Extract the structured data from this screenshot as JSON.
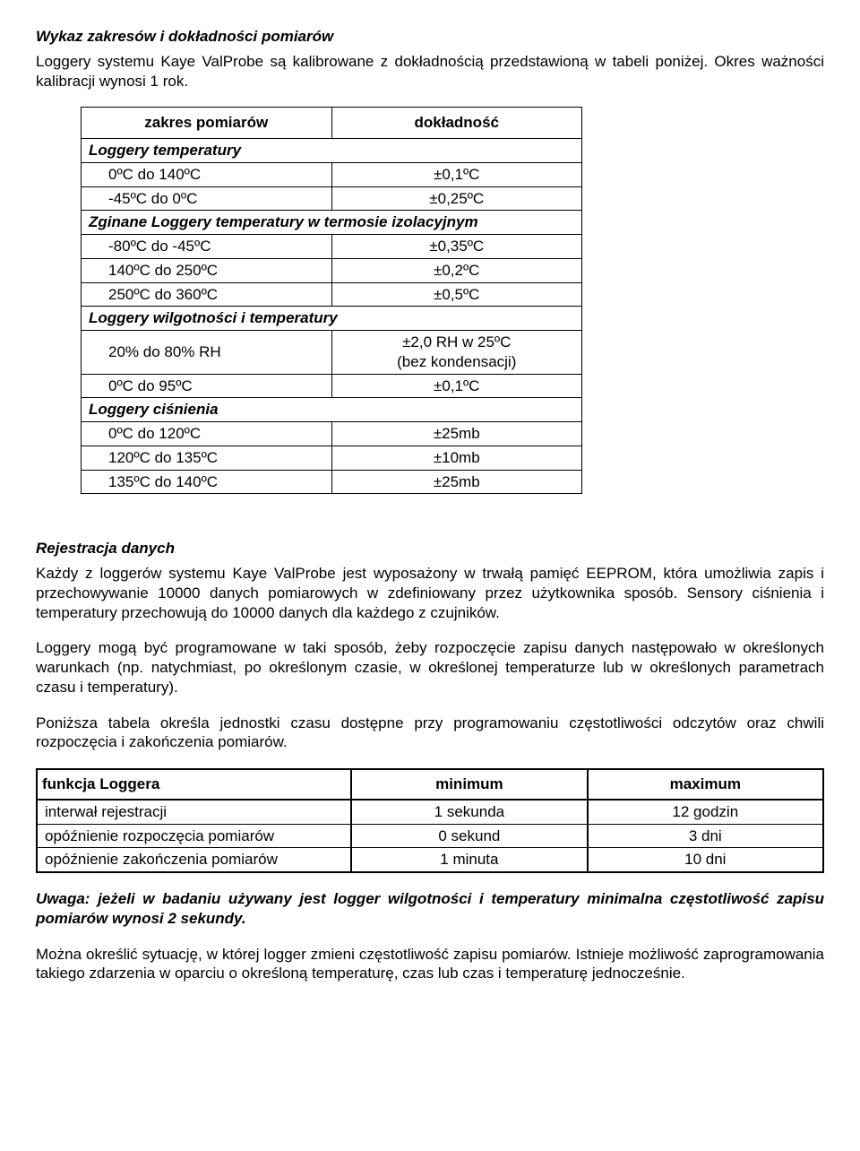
{
  "s1": {
    "title": "Wykaz zakresów i dokładności pomiarów",
    "intro": "Loggery systemu Kaye ValProbe są kalibrowane z dokładnością przedstawioną w tabeli poniżej. Okres ważności kalibracji wynosi 1 rok."
  },
  "t1": {
    "h1": "zakres pomiarów",
    "h2": "dokładność",
    "g1": "Loggery temperatury",
    "r1a": "0ºC do 140ºC",
    "r1b": "±0,1ºC",
    "r2a": "-45ºC do 0ºC",
    "r2b": "±0,25ºC",
    "g2": "Zginane Loggery temperatury w termosie izolacyjnym",
    "r3a": "-80ºC do -45ºC",
    "r3b": "±0,35ºC",
    "r4a": "140ºC do 250ºC",
    "r4b": "±0,2ºC",
    "r5a": "250ºC do 360ºC",
    "r5b": "±0,5ºC",
    "g3": "Loggery wilgotności i temperatury",
    "r6a": "20% do 80% RH",
    "r6b1": "±2,0 RH w 25ºC",
    "r6b2": "(bez kondensacji)",
    "r7a": "0ºC do 95ºC",
    "r7b": "±0,1ºC",
    "g4": "Loggery ciśnienia",
    "r8a": "0ºC do 120ºC",
    "r8b": "±25mb",
    "r9a": "120ºC do 135ºC",
    "r9b": "±10mb",
    "r10a": "135ºC do 140ºC",
    "r10b": "±25mb"
  },
  "s2": {
    "title": "Rejestracja danych",
    "p1": "Każdy z loggerów systemu Kaye ValProbe jest wyposażony w trwałą pamięć EEPROM, która umożliwia zapis i przechowywanie 10000 danych pomiarowych w zdefiniowany przez użytkownika sposób. Sensory ciśnienia i temperatury przechowują do 10000 danych dla każdego z czujników.",
    "p2": "Loggery mogą być programowane w taki sposób, żeby rozpoczęcie zapisu danych następowało w określonych warunkach (np. natychmiast, po określonym czasie, w określonej temperaturze lub w określonych parametrach czasu i temperatury).",
    "p3": "Poniższa tabela określa jednostki czasu dostępne przy programowaniu częstotliwości odczytów oraz chwili rozpoczęcia i zakończenia pomiarów."
  },
  "t2": {
    "h1": "funkcja Loggera",
    "h2": "minimum",
    "h3": "maximum",
    "r1a": "interwał rejestracji",
    "r1b": "1 sekunda",
    "r1c": "12 godzin",
    "r2a": "opóźnienie rozpoczęcia pomiarów",
    "r2b": "0 sekund",
    "r2c": "3 dni",
    "r3a": "opóźnienie zakończenia pomiarów",
    "r3b": "1 minuta",
    "r3c": "10 dni"
  },
  "s3": {
    "note": "Uwaga: jeżeli w badaniu używany jest logger wilgotności i temperatury minimalna częstotliwość zapisu pomiarów wynosi 2 sekundy.",
    "p1": "Można określić sytuację, w której logger zmieni częstotliwość zapisu pomiarów. Istnieje możliwość zaprogramowania takiego zdarzenia w oparciu o określoną temperaturę, czas lub czas i temperaturę jednocześnie."
  }
}
